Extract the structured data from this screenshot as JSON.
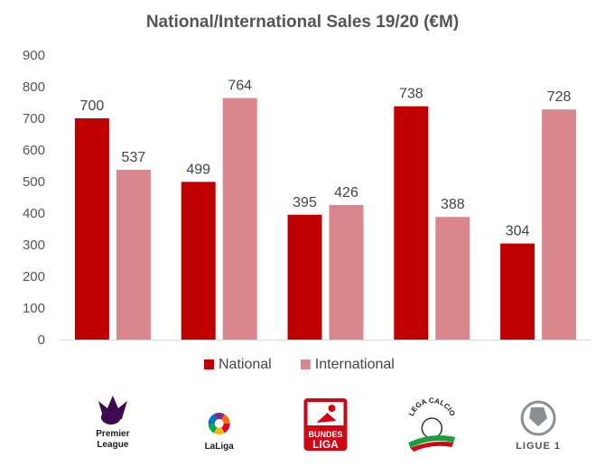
{
  "chart_data": {
    "type": "bar",
    "title": "National/International Sales 19/20 (€M)",
    "xlabel": "",
    "ylabel": "",
    "ylim": [
      0,
      900
    ],
    "yticks": [
      0,
      100,
      200,
      300,
      400,
      500,
      600,
      700,
      800,
      900
    ],
    "grid": false,
    "legend_position": "bottom",
    "categories": [
      "Premier League",
      "LaLiga",
      "Bundesliga",
      "Lega Calcio",
      "Ligue 1"
    ],
    "series": [
      {
        "name": "National",
        "color": "#c00000",
        "values": [
          700,
          499,
          395,
          738,
          304
        ]
      },
      {
        "name": "International",
        "color": "#d9868c",
        "values": [
          537,
          764,
          426,
          388,
          728
        ]
      }
    ]
  },
  "logos": [
    {
      "icon": "premier-league-logo",
      "lines": [
        "Premier",
        "League"
      ]
    },
    {
      "icon": "laliga-logo",
      "lines": [
        "LaLiga"
      ]
    },
    {
      "icon": "bundesliga-logo",
      "lines": [
        "BUNDES",
        "LIGA"
      ]
    },
    {
      "icon": "lega-calcio-logo",
      "lines": [
        "LEGA CALCIO"
      ]
    },
    {
      "icon": "ligue-1-logo",
      "lines": [
        "LIGUE 1"
      ]
    }
  ]
}
